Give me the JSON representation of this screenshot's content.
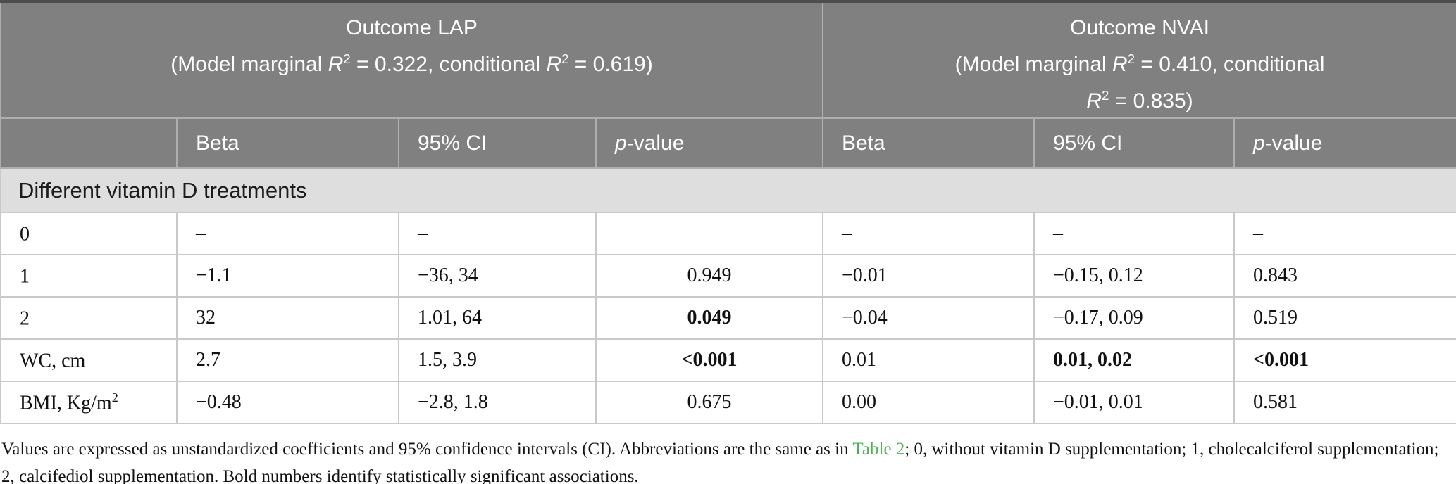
{
  "colors": {
    "header_bg": "#808080",
    "section_bg": "#dedede",
    "body_border": "#c9c9c9",
    "top_border": "#4d4d4d",
    "link_green": "#4caf50"
  },
  "group_headers": {
    "lap": {
      "title": "Outcome LAP",
      "sub_pre": "(Model marginal ",
      "r1": "R",
      "sup1": "2",
      "sub_mid": " = 0.322, conditional ",
      "r2": "R",
      "sup2": "2",
      "sub_post": " = 0.619)"
    },
    "nvai": {
      "title": "Outcome NVAI",
      "sub_pre": "(Model marginal ",
      "r1": "R",
      "sup1": "2",
      "sub_mid": " = 0.410, conditional",
      "r2": "R",
      "sup2": "2",
      "sub_post": " = 0.835)"
    }
  },
  "columns": {
    "beta": "Beta",
    "ci": "95% CI",
    "p_italic": "p",
    "p_rest": "-value"
  },
  "section": {
    "label": "Different vitamin D treatments"
  },
  "rows": [
    {
      "label": "0",
      "label_sup": "",
      "lap_beta": "–",
      "lap_ci": "–",
      "lap_p": "",
      "lap_p_b": "",
      "nvai_beta": "–",
      "nvai_ci": "–",
      "nvai_ci_b": "",
      "nvai_p": "–",
      "nvai_p_b": ""
    },
    {
      "label": "1",
      "label_sup": "",
      "lap_beta": "−1.1",
      "lap_ci": "−36, 34",
      "lap_p": "0.949",
      "lap_p_b": "",
      "nvai_beta": "−0.01",
      "nvai_ci": "−0.15, 0.12",
      "nvai_ci_b": "",
      "nvai_p": "0.843",
      "nvai_p_b": ""
    },
    {
      "label": "2",
      "label_sup": "",
      "lap_beta": "32",
      "lap_ci": "1.01, 64",
      "lap_p": "0.049",
      "lap_p_b": "bold",
      "nvai_beta": "−0.04",
      "nvai_ci": "−0.17, 0.09",
      "nvai_ci_b": "",
      "nvai_p": "0.519",
      "nvai_p_b": ""
    },
    {
      "label": "WC, cm",
      "label_sup": "",
      "lap_beta": "2.7",
      "lap_ci": "1.5, 3.9",
      "lap_p": "<0.001",
      "lap_p_b": "bold",
      "nvai_beta": "0.01",
      "nvai_ci": "0.01, 0.02",
      "nvai_ci_b": "bold",
      "nvai_p": "<0.001",
      "nvai_p_b": "bold"
    },
    {
      "label": "BMI, Kg/m",
      "label_sup": "2",
      "lap_beta": "−0.48",
      "lap_ci": "−2.8, 1.8",
      "lap_p": "0.675",
      "lap_p_b": "",
      "nvai_beta": "0.00",
      "nvai_ci": "−0.01, 0.01",
      "nvai_ci_b": "",
      "nvai_p": "0.581",
      "nvai_p_b": ""
    }
  ],
  "footnote": {
    "pre": "Values are expressed as unstandardized coefficients and 95% confidence intervals (CI). Abbreviations are the same as in ",
    "link": "Table 2",
    "post": "; 0, without vitamin D supplementation; 1, cholecalciferol supplementation; 2, calcifediol supplementation. Bold numbers identify statistically significant associations."
  }
}
